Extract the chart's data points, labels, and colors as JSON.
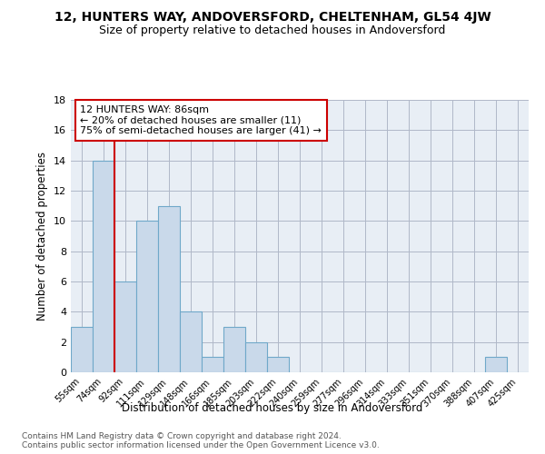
{
  "title": "12, HUNTERS WAY, ANDOVERSFORD, CHELTENHAM, GL54 4JW",
  "subtitle": "Size of property relative to detached houses in Andoversford",
  "xlabel": "Distribution of detached houses by size in Andoversford",
  "ylabel": "Number of detached properties",
  "annotation_line1": "12 HUNTERS WAY: 86sqm",
  "annotation_line2": "← 20% of detached houses are smaller (11)",
  "annotation_line3": "75% of semi-detached houses are larger (41) →",
  "footer_line1": "Contains HM Land Registry data © Crown copyright and database right 2024.",
  "footer_line2": "Contains public sector information licensed under the Open Government Licence v3.0.",
  "bin_labels": [
    "55sqm",
    "74sqm",
    "92sqm",
    "111sqm",
    "129sqm",
    "148sqm",
    "166sqm",
    "185sqm",
    "203sqm",
    "222sqm",
    "240sqm",
    "259sqm",
    "277sqm",
    "296sqm",
    "314sqm",
    "333sqm",
    "351sqm",
    "370sqm",
    "388sqm",
    "407sqm",
    "425sqm"
  ],
  "bin_values": [
    3,
    14,
    6,
    10,
    11,
    4,
    1,
    3,
    2,
    1,
    0,
    0,
    0,
    0,
    0,
    0,
    0,
    0,
    0,
    1,
    0
  ],
  "bar_color": "#c9d9ea",
  "bar_edge_color": "#6fa8c9",
  "highlight_line_color": "#cc0000",
  "ylim": [
    0,
    18
  ],
  "yticks": [
    0,
    2,
    4,
    6,
    8,
    10,
    12,
    14,
    16,
    18
  ],
  "grid_color": "#b0b8c8",
  "bg_color": "#e8eef5",
  "annotation_box_edge_color": "#cc0000",
  "annotation_box_facecolor": "white",
  "title_fontsize": 10,
  "subtitle_fontsize": 9,
  "xlabel_fontsize": 8.5,
  "ylabel_fontsize": 8.5,
  "footer_fontsize": 6.5
}
